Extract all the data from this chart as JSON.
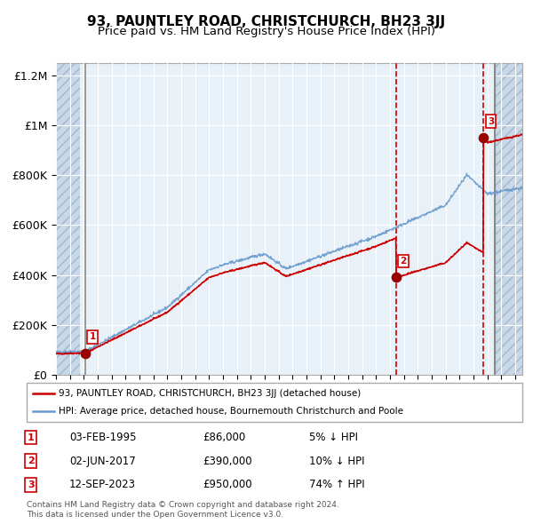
{
  "title": "93, PAUNTLEY ROAD, CHRISTCHURCH, BH23 3JJ",
  "subtitle": "Price paid vs. HM Land Registry's House Price Index (HPI)",
  "xlim": [
    1993.0,
    2026.5
  ],
  "ylim": [
    0,
    1250000
  ],
  "yticks": [
    0,
    200000,
    400000,
    600000,
    800000,
    1000000,
    1200000
  ],
  "ytick_labels": [
    "£0",
    "£200K",
    "£400K",
    "£600K",
    "£800K",
    "£1M",
    "£1.2M"
  ],
  "xticks": [
    1993,
    1994,
    1995,
    1996,
    1997,
    1998,
    1999,
    2000,
    2001,
    2002,
    2003,
    2004,
    2005,
    2006,
    2007,
    2008,
    2009,
    2010,
    2011,
    2012,
    2013,
    2014,
    2015,
    2016,
    2017,
    2018,
    2019,
    2020,
    2021,
    2022,
    2023,
    2024,
    2025,
    2026
  ],
  "plot_bg": "#e8f0f8",
  "hatch_color": "#c8d8e8",
  "grid_color": "#ffffff",
  "sale_points": [
    {
      "year": 1995.09,
      "price": 86000,
      "label": "1"
    },
    {
      "year": 2017.42,
      "price": 390000,
      "label": "2"
    },
    {
      "year": 2023.7,
      "price": 950000,
      "label": "3"
    }
  ],
  "sale_dates": [
    "03-FEB-1995",
    "02-JUN-2017",
    "12-SEP-2023"
  ],
  "sale_prices": [
    "£86,000",
    "£390,000",
    "£950,000"
  ],
  "sale_hpi_text": [
    "5% ↓ HPI",
    "10% ↓ HPI",
    "74% ↑ HPI"
  ],
  "legend_line1": "93, PAUNTLEY ROAD, CHRISTCHURCH, BH23 3JJ (detached house)",
  "legend_line2": "HPI: Average price, detached house, Bournemouth Christchurch and Poole",
  "footer_line1": "Contains HM Land Registry data © Crown copyright and database right 2024.",
  "footer_line2": "This data is licensed under the Open Government Licence v3.0.",
  "red_line_color": "#cc0000",
  "blue_line_color": "#6699cc",
  "marker_color": "#990000",
  "vline_color_solid": "#888888",
  "vline_color_dashed": "#cc0000",
  "hatch_left_end": 1994.75,
  "hatch_right_start": 2024.55
}
